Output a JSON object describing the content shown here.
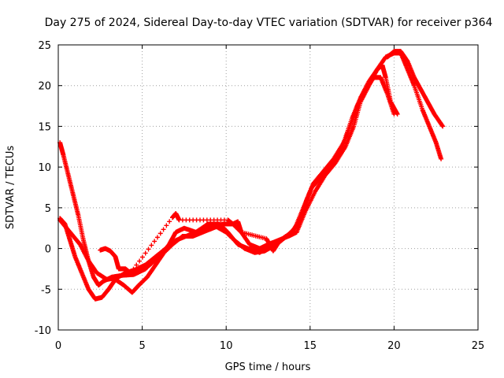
{
  "chart_data": {
    "type": "scatter",
    "title": "Day 275 of 2024, Sidereal Day-to-day VTEC variation (SDTVAR) for receiver p364",
    "xlabel": "GPS time / hours",
    "ylabel": "SDTVAR / TECUs",
    "xlim": [
      0,
      25
    ],
    "ylim": [
      -10,
      25
    ],
    "xticks": [
      0,
      5,
      10,
      15,
      20,
      25
    ],
    "yticks": [
      -10,
      -5,
      0,
      5,
      10,
      15,
      20,
      25
    ],
    "grid": true,
    "marker": "+",
    "series": [
      {
        "name": "arc-a",
        "color": "#ff0000",
        "points": [
          [
            0.1,
            13.0
          ],
          [
            0.3,
            11.5
          ],
          [
            0.6,
            9.0
          ],
          [
            0.9,
            6.5
          ],
          [
            1.2,
            4.0
          ],
          [
            1.5,
            1.0
          ],
          [
            1.8,
            -1.5
          ],
          [
            2.1,
            -3.5
          ],
          [
            2.4,
            -4.5
          ],
          [
            2.7,
            -4.0
          ],
          [
            3.2,
            -3.5
          ],
          [
            3.8,
            -3.3
          ],
          [
            4.5,
            -3.2
          ],
          [
            5.2,
            -2.5
          ],
          [
            6.0,
            -1.0
          ],
          [
            6.6,
            0.5
          ],
          [
            7.0,
            2.0
          ],
          [
            7.5,
            2.5
          ],
          [
            8.2,
            2.0
          ],
          [
            8.9,
            3.0
          ],
          [
            9.6,
            3.0
          ],
          [
            10.1,
            2.0
          ],
          [
            10.7,
            0.5
          ],
          [
            11.3,
            0.0
          ],
          [
            12.0,
            -0.5
          ],
          [
            12.6,
            0.5
          ],
          [
            13.2,
            1.0
          ],
          [
            13.9,
            2.0
          ],
          [
            14.4,
            3.5
          ],
          [
            14.8,
            6.0
          ],
          [
            15.2,
            8.0
          ],
          [
            15.8,
            9.5
          ],
          [
            16.4,
            11.0
          ],
          [
            17.0,
            13.0
          ],
          [
            17.5,
            16.0
          ],
          [
            18.0,
            18.5
          ],
          [
            18.5,
            20.5
          ],
          [
            19.0,
            22.0
          ],
          [
            19.3,
            22.5
          ],
          [
            19.5,
            21.0
          ],
          [
            19.8,
            18.0
          ],
          [
            20.2,
            16.5
          ]
        ]
      },
      {
        "name": "arc-b",
        "color": "#ff0000",
        "points": [
          [
            0.1,
            3.5
          ],
          [
            0.5,
            2.5
          ],
          [
            0.9,
            1.5
          ],
          [
            1.3,
            0.5
          ],
          [
            1.8,
            -1.5
          ],
          [
            2.3,
            -3.0
          ],
          [
            2.9,
            -3.8
          ],
          [
            3.5,
            -3.6
          ],
          [
            4.0,
            -3.0
          ],
          [
            4.6,
            -2.6
          ],
          [
            5.2,
            -2.0
          ],
          [
            5.8,
            -1.0
          ],
          [
            6.4,
            0.0
          ],
          [
            7.0,
            1.0
          ],
          [
            7.6,
            1.5
          ],
          [
            8.2,
            2.0
          ],
          [
            8.8,
            2.5
          ],
          [
            9.4,
            2.7
          ],
          [
            10.0,
            2.0
          ],
          [
            10.5,
            1.0
          ],
          [
            11.1,
            0.0
          ],
          [
            11.7,
            -0.5
          ],
          [
            12.3,
            -0.3
          ],
          [
            13.0,
            0.5
          ],
          [
            13.6,
            1.5
          ],
          [
            14.1,
            2.5
          ],
          [
            14.6,
            5.0
          ],
          [
            15.1,
            7.5
          ],
          [
            15.7,
            8.8
          ],
          [
            16.2,
            10.0
          ],
          [
            16.8,
            12.0
          ],
          [
            17.3,
            14.5
          ],
          [
            17.8,
            17.5
          ],
          [
            18.3,
            19.5
          ],
          [
            18.8,
            21.0
          ],
          [
            19.2,
            21.0
          ],
          [
            19.6,
            19.0
          ],
          [
            20.0,
            16.5
          ]
        ]
      },
      {
        "name": "arc-c",
        "color": "#ff0000",
        "points": [
          [
            0.1,
            3.7
          ],
          [
            0.4,
            3.0
          ],
          [
            0.7,
            1.0
          ],
          [
            1.0,
            -1.0
          ],
          [
            1.4,
            -3.0
          ],
          [
            1.8,
            -5.0
          ],
          [
            2.2,
            -6.2
          ],
          [
            2.6,
            -6.0
          ],
          [
            3.0,
            -5.0
          ],
          [
            3.4,
            -3.8
          ],
          [
            3.9,
            -4.5
          ],
          [
            4.4,
            -5.4
          ],
          [
            4.8,
            -4.5
          ],
          [
            5.3,
            -3.5
          ],
          [
            5.8,
            -2.0
          ],
          [
            6.3,
            -0.5
          ],
          [
            6.8,
            0.5
          ],
          [
            7.4,
            1.5
          ],
          [
            8.0,
            1.5
          ],
          [
            8.6,
            2.0
          ],
          [
            9.2,
            2.5
          ],
          [
            9.8,
            3.0
          ],
          [
            10.4,
            3.0
          ],
          [
            10.9,
            2.0
          ],
          [
            11.4,
            0.5
          ],
          [
            12.0,
            0.0
          ],
          [
            12.5,
            0.5
          ],
          [
            13.1,
            1.0
          ],
          [
            13.7,
            1.5
          ],
          [
            14.2,
            2.0
          ],
          [
            14.7,
            4.5
          ],
          [
            15.3,
            7.0
          ],
          [
            15.9,
            9.0
          ],
          [
            16.5,
            10.5
          ],
          [
            17.1,
            12.5
          ],
          [
            17.6,
            15.0
          ],
          [
            18.0,
            18.0
          ],
          [
            18.5,
            20.0
          ],
          [
            19.0,
            22.0
          ],
          [
            19.5,
            23.5
          ],
          [
            20.0,
            24.0
          ],
          [
            20.4,
            24.0
          ],
          [
            20.8,
            22.0
          ],
          [
            21.2,
            20.0
          ],
          [
            21.7,
            17.0
          ],
          [
            22.1,
            15.0
          ],
          [
            22.5,
            13.0
          ],
          [
            22.8,
            11.0
          ]
        ]
      },
      {
        "name": "arc-d",
        "color": "#ff0000",
        "points": [
          [
            19.6,
            23.5
          ],
          [
            20.0,
            24.2
          ],
          [
            20.4,
            24.2
          ],
          [
            20.8,
            23.0
          ],
          [
            21.2,
            21.0
          ],
          [
            21.6,
            19.5
          ],
          [
            22.0,
            18.0
          ],
          [
            22.4,
            16.5
          ],
          [
            22.9,
            15.0
          ]
        ]
      },
      {
        "name": "cluster",
        "color": "#ff0000",
        "points": [
          [
            2.5,
            -0.2
          ],
          [
            2.8,
            0.0
          ],
          [
            3.1,
            -0.3
          ],
          [
            3.4,
            -1.0
          ],
          [
            3.6,
            -2.5
          ],
          [
            4.0,
            -2.5
          ],
          [
            4.3,
            -3.0
          ],
          [
            6.8,
            3.8
          ],
          [
            7.0,
            4.3
          ],
          [
            7.2,
            3.5
          ],
          [
            10.1,
            3.5
          ],
          [
            10.4,
            3.0
          ],
          [
            10.7,
            3.3
          ],
          [
            10.9,
            2.0
          ],
          [
            12.4,
            1.2
          ],
          [
            12.8,
            -0.3
          ],
          [
            13.2,
            1.0
          ]
        ]
      }
    ]
  }
}
